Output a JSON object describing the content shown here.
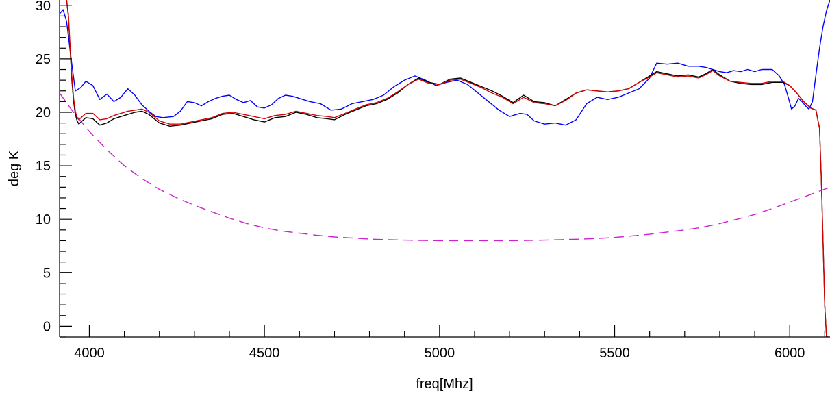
{
  "chart_data": {
    "type": "line",
    "xlabel": "freq[Mhz]",
    "ylabel": "deg K",
    "xlim": [
      3915,
      6115
    ],
    "ylim": [
      -1,
      30.5
    ],
    "x_ticks": [
      4000,
      4500,
      5000,
      5500,
      6000
    ],
    "x_minor_step": 100,
    "y_ticks": [
      0,
      5,
      10,
      15,
      20,
      25,
      30
    ],
    "y_minor_step": 1,
    "grid": false,
    "series": [
      {
        "color": "#0000ff",
        "dash": "",
        "x": [
          3915,
          3925,
          3935,
          3950,
          3960,
          3975,
          3990,
          4010,
          4030,
          4050,
          4070,
          4090,
          4110,
          4130,
          4150,
          4170,
          4190,
          4210,
          4240,
          4260,
          4280,
          4300,
          4320,
          4340,
          4360,
          4380,
          4400,
          4420,
          4440,
          4460,
          4480,
          4500,
          4520,
          4540,
          4560,
          4580,
          4600,
          4630,
          4660,
          4690,
          4720,
          4750,
          4780,
          4810,
          4840,
          4870,
          4900,
          4930,
          4960,
          4990,
          5020,
          5050,
          5080,
          5110,
          5140,
          5170,
          5200,
          5230,
          5250,
          5270,
          5300,
          5330,
          5360,
          5390,
          5420,
          5450,
          5480,
          5510,
          5540,
          5570,
          5600,
          5620,
          5650,
          5680,
          5710,
          5740,
          5760,
          5780,
          5800,
          5820,
          5840,
          5860,
          5880,
          5900,
          5920,
          5950,
          5970,
          5985,
          5995,
          6005,
          6015,
          6025,
          6035,
          6045,
          6055,
          6065,
          6075,
          6085,
          6095,
          6105,
          6115
        ],
        "y": [
          29.2,
          29.6,
          28.5,
          24.5,
          22.0,
          22.3,
          22.9,
          22.5,
          21.2,
          21.7,
          21.0,
          21.4,
          22.2,
          21.6,
          20.7,
          20.1,
          19.6,
          19.5,
          19.6,
          20.1,
          21.0,
          20.9,
          20.6,
          21.0,
          21.3,
          21.5,
          21.6,
          21.2,
          20.9,
          21.1,
          20.5,
          20.4,
          20.7,
          21.3,
          21.6,
          21.5,
          21.3,
          21.0,
          20.8,
          20.2,
          20.3,
          20.8,
          21.0,
          21.2,
          21.6,
          22.4,
          23.0,
          23.4,
          23.0,
          22.5,
          22.8,
          23.0,
          22.6,
          21.8,
          21.0,
          20.2,
          19.6,
          19.9,
          19.8,
          19.2,
          18.9,
          19.0,
          18.8,
          19.3,
          20.8,
          21.4,
          21.2,
          21.4,
          21.8,
          22.2,
          23.2,
          24.6,
          24.5,
          24.6,
          24.3,
          24.3,
          24.2,
          24.0,
          23.8,
          23.7,
          23.9,
          23.8,
          24.0,
          23.8,
          24.0,
          24.0,
          23.4,
          22.6,
          21.5,
          20.3,
          20.6,
          21.3,
          21.0,
          20.6,
          20.3,
          21.0,
          23.5,
          26.0,
          28.0,
          29.5,
          30.5
        ]
      },
      {
        "color": "#000000",
        "dash": "",
        "x": [
          3935,
          3940,
          3945,
          3950,
          3955,
          3960,
          3965,
          3970,
          3980,
          3990,
          4010,
          4030,
          4050,
          4070,
          4090,
          4110,
          4130,
          4150,
          4170,
          4200,
          4230,
          4260,
          4290,
          4320,
          4350,
          4380,
          4410,
          4440,
          4470,
          4500,
          4530,
          4560,
          4590,
          4620,
          4650,
          4680,
          4700,
          4730,
          4760,
          4790,
          4820,
          4850,
          4880,
          4910,
          4940,
          4970,
          5000,
          5030,
          5060,
          5090,
          5120,
          5150,
          5180,
          5210,
          5240,
          5270,
          5300,
          5330,
          5360,
          5390,
          5420,
          5450,
          5480,
          5510,
          5540,
          5570,
          5600,
          5620,
          5650,
          5680,
          5710,
          5740,
          5760,
          5780,
          5800,
          5830,
          5860,
          5890,
          5920,
          5950,
          5980,
          6000,
          6020,
          6040,
          6060,
          6075,
          6085,
          6090,
          6095,
          6100,
          6105,
          6110
        ],
        "y": [
          30.5,
          29.0,
          26.0,
          23.0,
          21.0,
          19.8,
          19.2,
          18.9,
          19.2,
          19.5,
          19.4,
          18.8,
          19.0,
          19.4,
          19.6,
          19.8,
          20.0,
          20.1,
          19.8,
          19.0,
          18.7,
          18.8,
          19.0,
          19.2,
          19.4,
          19.8,
          19.9,
          19.6,
          19.3,
          19.1,
          19.5,
          19.6,
          20.0,
          19.8,
          19.5,
          19.4,
          19.3,
          19.8,
          20.2,
          20.6,
          20.8,
          21.2,
          21.8,
          22.6,
          23.2,
          22.8,
          22.6,
          23.1,
          23.2,
          22.8,
          22.4,
          22.0,
          21.5,
          20.9,
          21.6,
          21.0,
          20.9,
          20.6,
          21.2,
          21.8,
          22.1,
          22.0,
          21.9,
          22.0,
          22.2,
          22.8,
          23.4,
          23.8,
          23.6,
          23.4,
          23.5,
          23.3,
          23.6,
          24.0,
          23.5,
          22.9,
          22.7,
          22.6,
          22.6,
          22.8,
          22.8,
          22.5,
          21.8,
          21.0,
          20.4,
          20.2,
          18.5,
          14.0,
          8.0,
          2.0,
          -1.0,
          -1.0
        ]
      },
      {
        "color": "#d40000",
        "dash": "",
        "x": [
          3935,
          3940,
          3945,
          3950,
          3955,
          3960,
          3965,
          3970,
          3980,
          3990,
          4010,
          4030,
          4050,
          4070,
          4090,
          4110,
          4130,
          4150,
          4170,
          4200,
          4230,
          4260,
          4290,
          4320,
          4350,
          4380,
          4410,
          4440,
          4470,
          4500,
          4530,
          4560,
          4590,
          4620,
          4650,
          4680,
          4700,
          4730,
          4760,
          4790,
          4820,
          4850,
          4880,
          4910,
          4940,
          4970,
          5000,
          5030,
          5060,
          5090,
          5120,
          5150,
          5180,
          5210,
          5240,
          5270,
          5300,
          5330,
          5360,
          5390,
          5420,
          5450,
          5480,
          5510,
          5540,
          5570,
          5600,
          5620,
          5650,
          5680,
          5710,
          5740,
          5760,
          5780,
          5800,
          5830,
          5860,
          5890,
          5920,
          5950,
          5980,
          6000,
          6020,
          6040,
          6060,
          6075,
          6085,
          6090,
          6095,
          6100,
          6105,
          6110
        ],
        "y": [
          30.5,
          29.2,
          26.3,
          23.4,
          21.3,
          20.1,
          19.5,
          19.3,
          19.6,
          19.9,
          19.9,
          19.3,
          19.4,
          19.7,
          19.9,
          20.1,
          20.2,
          20.3,
          20.0,
          19.2,
          18.9,
          18.9,
          19.1,
          19.3,
          19.5,
          19.9,
          20.0,
          19.8,
          19.6,
          19.4,
          19.7,
          19.8,
          20.1,
          19.9,
          19.7,
          19.6,
          19.5,
          19.9,
          20.3,
          20.7,
          20.9,
          21.3,
          21.9,
          22.6,
          23.1,
          22.7,
          22.6,
          23.0,
          23.1,
          22.7,
          22.3,
          21.8,
          21.4,
          20.8,
          21.4,
          20.9,
          20.8,
          20.6,
          21.1,
          21.8,
          22.1,
          22.0,
          21.9,
          22.0,
          22.2,
          22.8,
          23.3,
          23.7,
          23.5,
          23.3,
          23.4,
          23.2,
          23.5,
          23.9,
          23.4,
          22.9,
          22.8,
          22.7,
          22.7,
          22.9,
          22.9,
          22.5,
          21.8,
          21.0,
          20.4,
          20.2,
          18.5,
          14.0,
          8.0,
          2.0,
          -1.0,
          -1.0
        ]
      },
      {
        "color": "#cc22cc",
        "dash": "14,8",
        "x": [
          3915,
          3950,
          4000,
          4050,
          4100,
          4150,
          4200,
          4250,
          4300,
          4350,
          4400,
          4450,
          4500,
          4550,
          4600,
          4650,
          4700,
          4750,
          4800,
          4850,
          4900,
          4950,
          5000,
          5050,
          5100,
          5150,
          5200,
          5250,
          5300,
          5350,
          5400,
          5450,
          5500,
          5550,
          5600,
          5650,
          5700,
          5750,
          5800,
          5850,
          5900,
          5950,
          6000,
          6050,
          6115
        ],
        "y": [
          21.8,
          20.2,
          18.2,
          16.5,
          15.0,
          13.8,
          12.8,
          12.0,
          11.3,
          10.7,
          10.1,
          9.6,
          9.2,
          8.9,
          8.7,
          8.5,
          8.35,
          8.25,
          8.15,
          8.1,
          8.05,
          8.02,
          8.0,
          8.0,
          8.0,
          8.0,
          8.0,
          8.02,
          8.05,
          8.1,
          8.15,
          8.2,
          8.3,
          8.45,
          8.6,
          8.8,
          9.0,
          9.25,
          9.6,
          10.0,
          10.45,
          11.0,
          11.6,
          12.2,
          13.0
        ]
      }
    ]
  }
}
